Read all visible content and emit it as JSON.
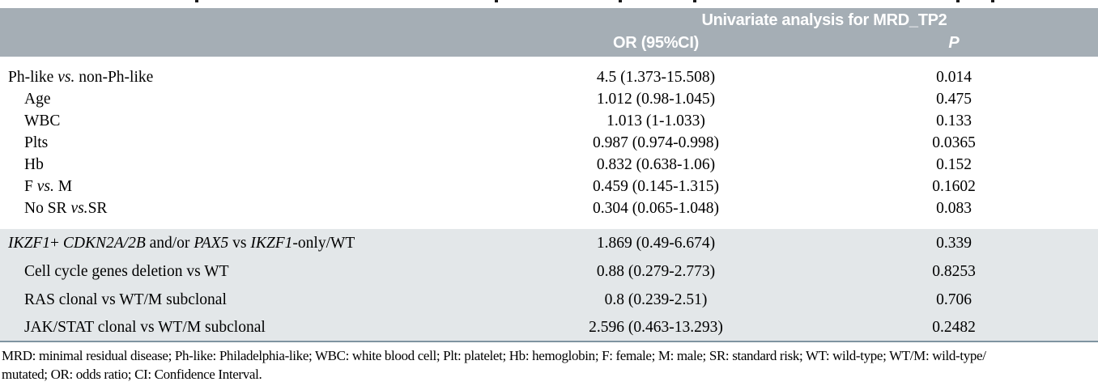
{
  "colors": {
    "header_bg": "#a5aeb5",
    "shaded_bg": "#e3e7e9",
    "rule_color": "#7f94a1",
    "header_text": "#ffffff",
    "body_text": "#000000"
  },
  "table": {
    "group_header": "Univariate analysis for MRD_TP2",
    "columns": {
      "or": "OR (95%CI)",
      "p": "P"
    },
    "rows": [
      {
        "label_parts": [
          {
            "t": "Ph-like ",
            "i": false
          },
          {
            "t": "vs.",
            "i": true
          },
          {
            "t": " non-Ph-like",
            "i": false
          }
        ],
        "or_ci": "4.5 (1.373-15.508)",
        "p": "0.014",
        "indent": false,
        "shaded": false
      },
      {
        "label_parts": [
          {
            "t": "Age",
            "i": false
          }
        ],
        "or_ci": "1.012 (0.98-1.045)",
        "p": "0.475",
        "indent": true,
        "shaded": false
      },
      {
        "label_parts": [
          {
            "t": "WBC",
            "i": false
          }
        ],
        "or_ci": "1.013 (1-1.033)",
        "p": "0.133",
        "indent": true,
        "shaded": false
      },
      {
        "label_parts": [
          {
            "t": "Plts",
            "i": false
          }
        ],
        "or_ci": "0.987 (0.974-0.998)",
        "p": "0.0365",
        "indent": true,
        "shaded": false
      },
      {
        "label_parts": [
          {
            "t": "Hb",
            "i": false
          }
        ],
        "or_ci": "0.832 (0.638-1.06)",
        "p": "0.152",
        "indent": true,
        "shaded": false
      },
      {
        "label_parts": [
          {
            "t": "F ",
            "i": false
          },
          {
            "t": "vs.",
            "i": true
          },
          {
            "t": " M",
            "i": false
          }
        ],
        "or_ci": "0.459 (0.145-1.315)",
        "p": "0.1602",
        "indent": true,
        "shaded": false
      },
      {
        "label_parts": [
          {
            "t": "No SR ",
            "i": false
          },
          {
            "t": "vs.",
            "i": true
          },
          {
            "t": "SR",
            "i": false
          }
        ],
        "or_ci": "0.304 (0.065-1.048)",
        "p": "0.083",
        "indent": true,
        "shaded": false
      },
      {
        "label_parts": [
          {
            "t": "IKZF1",
            "i": true
          },
          {
            "t": "+ ",
            "i": false
          },
          {
            "t": "CDKN2A/2B",
            "i": true
          },
          {
            "t": " and/or ",
            "i": false
          },
          {
            "t": "PAX5",
            "i": true
          },
          {
            "t": " vs ",
            "i": false
          },
          {
            "t": "IKZF1",
            "i": true
          },
          {
            "t": "-only/WT",
            "i": false
          }
        ],
        "or_ci": "1.869 (0.49-6.674)",
        "p": "0.339",
        "indent": false,
        "shaded": true
      },
      {
        "label_parts": [
          {
            "t": "Cell cycle genes deletion vs WT",
            "i": false
          }
        ],
        "or_ci": "0.88 (0.279-2.773)",
        "p": "0.8253",
        "indent": true,
        "shaded": true
      },
      {
        "label_parts": [
          {
            "t": "RAS clonal vs WT/M subclonal",
            "i": false
          }
        ],
        "or_ci": "0.8 (0.239-2.51)",
        "p": "0.706",
        "indent": true,
        "shaded": true
      },
      {
        "label_parts": [
          {
            "t": "JAK/STAT clonal vs WT/M subclonal",
            "i": false
          }
        ],
        "or_ci": "2.596 (0.463-13.293)",
        "p": "0.2482",
        "indent": true,
        "shaded": true
      }
    ]
  },
  "footnote": {
    "lines": [
      "MRD: minimal residual disease; Ph-like: Philadelphia-like; WBC: white blood cell; Plt: platelet; Hb: hemoglobin; F: female; M: male; SR: standard risk; WT: wild-type; WT/M: wild-type/",
      "mutated; OR: odds ratio; CI: Confidence Interval."
    ]
  }
}
